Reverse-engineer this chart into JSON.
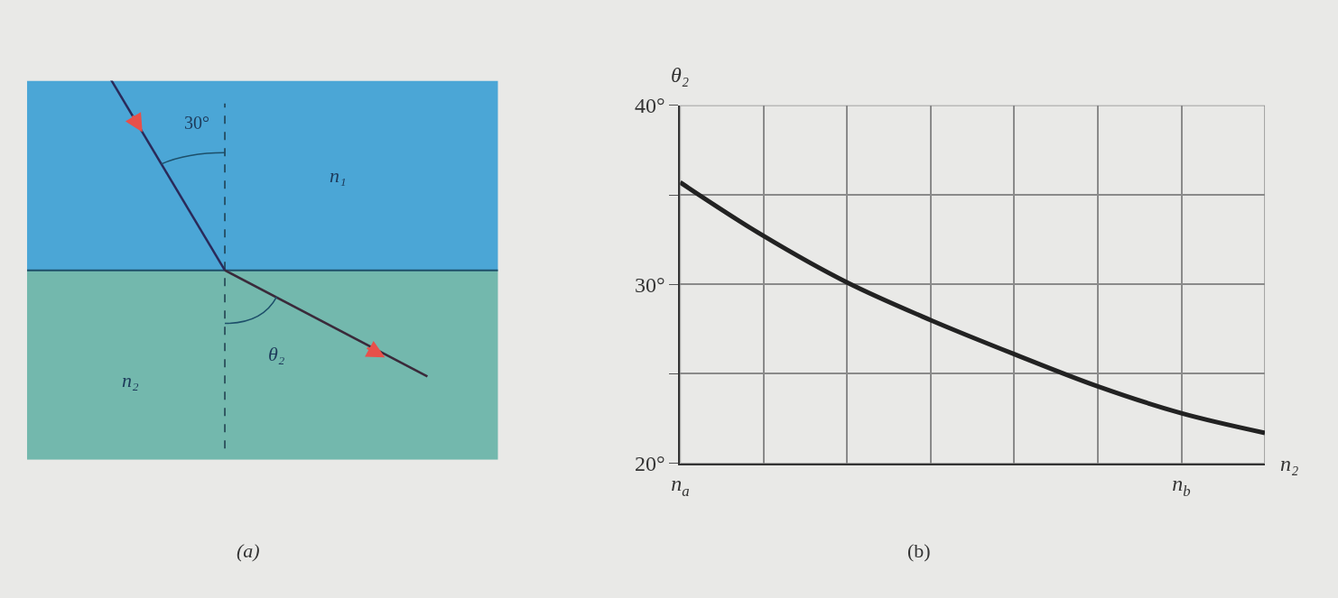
{
  "chart_data": [
    {
      "type": "other",
      "annotations": [
        "30°",
        "n₁",
        "n₂",
        "θ₂",
        "(a)"
      ]
    },
    {
      "type": "line",
      "xlabel": "n₂",
      "ylabel": "θ₂",
      "annotations": [
        "(b)"
      ],
      "categories": [
        "n$_{a}$",
        null,
        null,
        null,
        null,
        null,
        "n$_{b}$",
        null
      ],
      "series": [
        {
          "color": "#222222",
          "values": [
            35.7,
            32.7,
            30.1,
            28.0,
            26.1,
            24.3,
            22.8,
            21.7
          ]
        }
      ],
      "ylim": [
        20,
        40
      ],
      "yticks": [
        {
          "value": 20,
          "label": "20°"
        },
        {
          "value": 25,
          "label": null
        },
        {
          "value": 30,
          "label": "30°"
        },
        {
          "value": 35,
          "label": null
        },
        {
          "value": 40,
          "label": "40°"
        }
      ],
      "grid": true,
      "marker": "none",
      "line_style": "solid"
    }
  ]
}
